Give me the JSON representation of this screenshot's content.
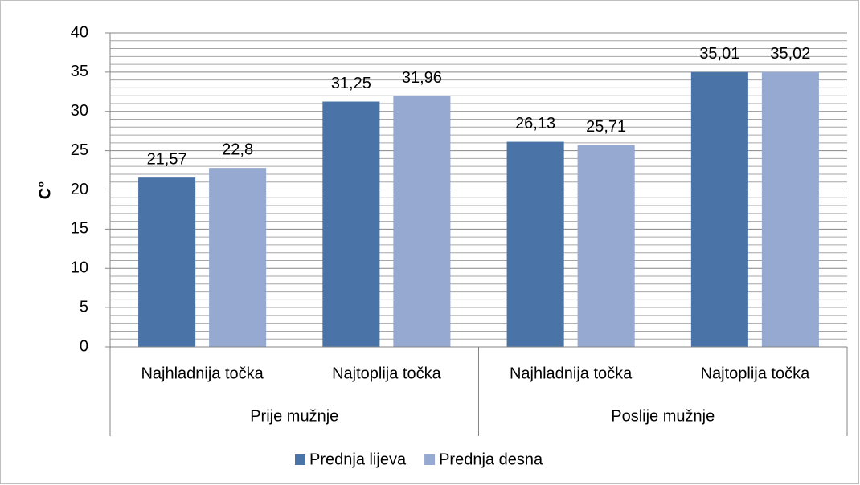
{
  "chart_data": {
    "type": "bar",
    "y_label": "C°",
    "groups": [
      {
        "name": "Prije mužnje",
        "categories": [
          "Najhladnija točka",
          "Najtoplija točka"
        ]
      },
      {
        "name": "Poslije mužnje",
        "categories": [
          "Najhladnija točka",
          "Najtoplija točka"
        ]
      }
    ],
    "series": [
      {
        "name": "Prednja lijeva",
        "color": "#4a74a8",
        "values": [
          21.57,
          31.25,
          26.13,
          35.01
        ],
        "value_labels": [
          "21,57",
          "31,25",
          "26,13",
          "35,01"
        ]
      },
      {
        "name": "Prednja desna",
        "color": "#95a9d1",
        "values": [
          22.8,
          31.96,
          25.71,
          35.02
        ],
        "value_labels": [
          "22,8",
          "31,96",
          "25,71",
          "35,02"
        ]
      }
    ],
    "ylim": [
      0,
      40
    ],
    "yticks": [
      0,
      5,
      10,
      15,
      20,
      25,
      30,
      35,
      40
    ],
    "minor_yticks": [
      1,
      2,
      3,
      4,
      6,
      7,
      8,
      9,
      11,
      12,
      13,
      14,
      16,
      17,
      18,
      19,
      21,
      22,
      23,
      24,
      26,
      27,
      28,
      29,
      31,
      32,
      33,
      34,
      36,
      37,
      38,
      39
    ],
    "grid": true,
    "legend": "bottom"
  }
}
